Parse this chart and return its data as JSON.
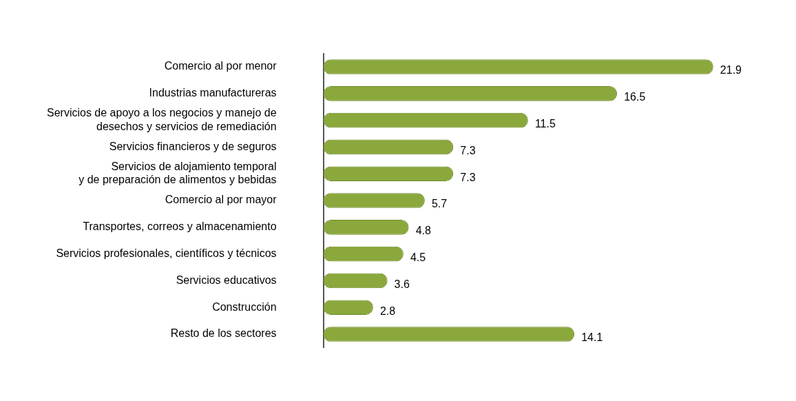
{
  "chart_data": {
    "type": "bar",
    "orientation": "horizontal",
    "data_labels": true,
    "grid": false,
    "legend": false,
    "color": "#8aa83c",
    "categories": [
      "Comercio al por menor",
      "Industrias manufactureras",
      "Servicios de apoyo a los negocios y manejo de\ndesechos y servicios de remediación",
      "Servicios financieros y de seguros",
      "Servicios de alojamiento temporal\ny de preparación de alimentos y bebidas",
      "Comercio al por mayor",
      "Transportes, correos y almacenamiento",
      "Servicios profesionales, científicos y técnicos",
      "Servicios educativos",
      "Construcción",
      "Resto de los sectores"
    ],
    "values": [
      21.9,
      16.5,
      11.5,
      7.3,
      7.3,
      5.7,
      4.8,
      4.5,
      3.6,
      2.8,
      14.1
    ]
  }
}
